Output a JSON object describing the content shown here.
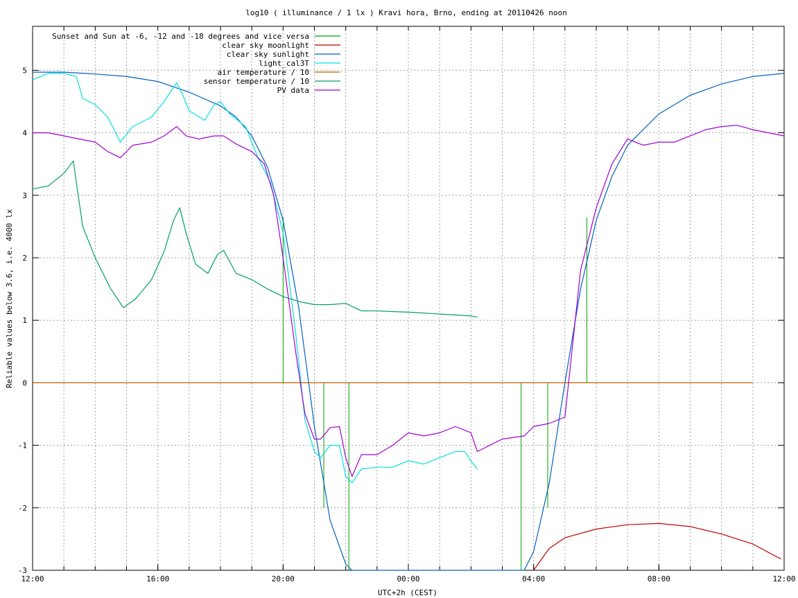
{
  "chart_data": {
    "type": "line",
    "title": "log10 ( illuminance / 1 lx ) Kravi hora, Brno, ending at 20110426 noon",
    "xlabel": "UTC+2h (CEST)",
    "ylabel": "Reliable values below 3.6, i.e. 4000 lx",
    "xlim": [
      12,
      36
    ],
    "ylim": [
      -3,
      5.75
    ],
    "x_ticks": [
      12,
      16,
      20,
      24,
      28,
      32,
      36
    ],
    "x_tick_labels": [
      "12:00",
      "16:00",
      "20:00",
      "00:00",
      "04:00",
      "08:00",
      "12:00"
    ],
    "x_minor_step": 1,
    "y_ticks": [
      -3,
      -2,
      -1,
      0,
      1,
      2,
      3,
      4,
      5
    ],
    "y_tick_labels": [
      "-3",
      "-2",
      "-1",
      "0",
      "1",
      "2",
      "3",
      "4",
      "5"
    ],
    "grid": true,
    "legend_position": "top-left",
    "legend": [
      "Sunset and Sun at -6, -12 and -18 degrees and vice versa",
      "clear sky moonlight",
      "clear sky sunlight",
      "light_cal3T",
      "air temperature / 10",
      "sensor temperature / 10",
      "PV data"
    ],
    "colors": {
      "events": "#00a000",
      "moon": "#c00000",
      "sun": "#0060c0",
      "light": "#00e0e0",
      "air": "#c06000",
      "sensor": "#00a060",
      "pv": "#a000d0"
    },
    "series": [
      {
        "name": "Sunset and Sun at -6, -12 and -18 degrees and vice versa",
        "type": "impulses",
        "x": [
          20.0,
          21.3,
          22.1,
          27.6,
          28.45,
          29.7
        ],
        "values": [
          2.65,
          -2.0,
          -3.0,
          -3.0,
          -2.0,
          2.65
        ]
      },
      {
        "name": "clear sky moonlight",
        "x": [
          28.0,
          28.5,
          29.0,
          30.0,
          31.0,
          32.0,
          33.0,
          34.0,
          35.0,
          35.9
        ],
        "values": [
          -3.0,
          -2.65,
          -2.48,
          -2.34,
          -2.27,
          -2.25,
          -2.3,
          -2.42,
          -2.58,
          -2.82
        ]
      },
      {
        "name": "clear sky sunlight",
        "x": [
          12,
          13,
          14,
          15,
          16,
          17,
          18,
          18.5,
          19,
          19.5,
          20,
          20.5,
          21,
          21.5,
          22,
          22.2,
          27.7,
          28.0,
          28.5,
          29.0,
          29.5,
          30.0,
          30.5,
          31,
          32,
          33,
          34,
          35,
          36
        ],
        "values": [
          4.97,
          4.97,
          4.94,
          4.9,
          4.82,
          4.65,
          4.43,
          4.25,
          3.95,
          3.45,
          2.6,
          1.2,
          -0.7,
          -2.2,
          -2.9,
          -3.0,
          -3.0,
          -2.7,
          -1.6,
          0.0,
          1.5,
          2.6,
          3.3,
          3.8,
          4.3,
          4.6,
          4.78,
          4.9,
          4.95
        ]
      },
      {
        "name": "light_cal3T",
        "x": [
          12.0,
          12.5,
          13.0,
          13.4,
          13.6,
          14.0,
          14.4,
          14.8,
          15.2,
          15.8,
          16.2,
          16.6,
          16.8,
          17.0,
          17.5,
          17.8,
          18.0,
          18.3,
          18.8,
          19.2,
          19.6,
          20.0,
          20.4,
          20.7,
          21.0,
          21.2,
          21.5,
          21.8,
          22.0,
          22.2,
          22.5,
          23.0,
          23.5,
          24.0,
          24.5,
          25.0,
          25.5,
          25.8,
          26.0,
          26.2
        ],
        "values": [
          4.85,
          4.95,
          4.95,
          4.9,
          4.55,
          4.45,
          4.25,
          3.85,
          4.1,
          4.25,
          4.5,
          4.8,
          4.6,
          4.35,
          4.2,
          4.45,
          4.5,
          4.3,
          4.1,
          3.6,
          3.2,
          2.4,
          0.8,
          -0.6,
          -1.1,
          -1.2,
          -1.0,
          -1.0,
          -1.5,
          -1.6,
          -1.38,
          -1.35,
          -1.35,
          -1.25,
          -1.3,
          -1.2,
          -1.1,
          -1.1,
          -1.25,
          -1.38
        ]
      },
      {
        "name": "air temperature / 10",
        "x": [
          12.0,
          35.0
        ],
        "values": [
          0.0,
          0.0
        ]
      },
      {
        "name": "sensor temperature / 10",
        "x": [
          12.0,
          12.5,
          13.0,
          13.3,
          13.6,
          14.0,
          14.5,
          14.9,
          15.3,
          15.8,
          16.2,
          16.5,
          16.7,
          16.9,
          17.2,
          17.6,
          17.9,
          18.1,
          18.5,
          19.0,
          19.5,
          20.0,
          20.5,
          21.0,
          21.5,
          22.0,
          22.5,
          23.0,
          24.0,
          25.0,
          26.0,
          26.2
        ],
        "values": [
          3.1,
          3.15,
          3.35,
          3.55,
          2.5,
          2.0,
          1.5,
          1.2,
          1.35,
          1.65,
          2.1,
          2.6,
          2.8,
          2.4,
          1.9,
          1.75,
          2.05,
          2.12,
          1.75,
          1.65,
          1.5,
          1.38,
          1.3,
          1.25,
          1.25,
          1.27,
          1.15,
          1.15,
          1.13,
          1.1,
          1.07,
          1.05
        ]
      },
      {
        "name": "PV data",
        "x": [
          12.0,
          12.5,
          13.0,
          13.5,
          14.0,
          14.4,
          14.8,
          15.2,
          15.8,
          16.2,
          16.6,
          16.9,
          17.3,
          17.8,
          18.1,
          18.5,
          19.0,
          19.4,
          19.7,
          20.0,
          20.4,
          20.7,
          21.0,
          21.2,
          21.5,
          21.8,
          22.0,
          22.2,
          22.5,
          23.0,
          23.5,
          24.0,
          24.5,
          25.0,
          25.5,
          26.0,
          26.2,
          27.0,
          27.7,
          28.0,
          28.5,
          29.0,
          29.5,
          30.0,
          30.5,
          31.0,
          31.5,
          32.0,
          32.5,
          33.0,
          33.5,
          34.0,
          34.5,
          35.0,
          35.5,
          36.0
        ],
        "values": [
          4.0,
          4.0,
          3.95,
          3.9,
          3.85,
          3.7,
          3.6,
          3.8,
          3.85,
          3.95,
          4.1,
          3.95,
          3.9,
          3.95,
          3.95,
          3.82,
          3.7,
          3.5,
          3.0,
          2.0,
          0.5,
          -0.5,
          -0.9,
          -0.9,
          -0.72,
          -0.7,
          -1.2,
          -1.5,
          -1.15,
          -1.15,
          -1.0,
          -0.8,
          -0.85,
          -0.8,
          -0.7,
          -0.8,
          -1.1,
          -0.9,
          -0.85,
          -0.7,
          -0.65,
          -0.55,
          1.8,
          2.8,
          3.5,
          3.9,
          3.8,
          3.85,
          3.85,
          3.95,
          4.05,
          4.1,
          4.12,
          4.05,
          4.0,
          3.95
        ]
      }
    ]
  }
}
